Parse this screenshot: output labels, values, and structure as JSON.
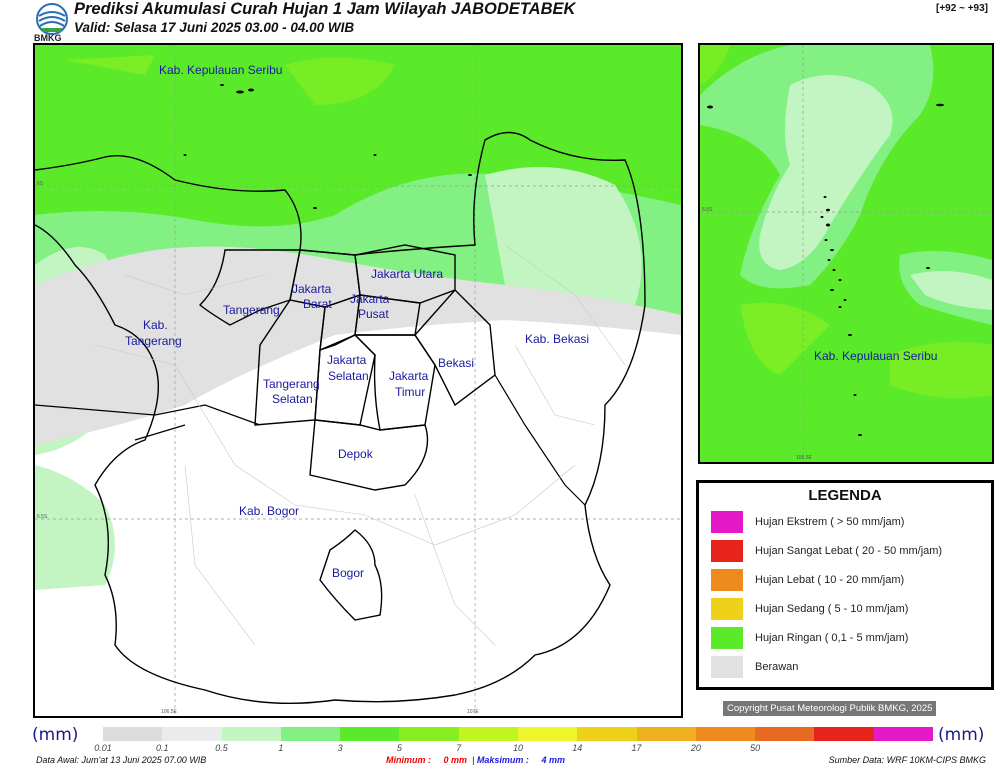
{
  "header": {
    "title": "Prediksi Akumulasi Curah Hujan 1 Jam Wilayah JABODETABEK",
    "valid": "Valid: Selasa 17 Juni 2025 03.00 - 04.00 WIB",
    "run_id": "[+92 ~ +93]",
    "logo_text": "BMKG"
  },
  "main_map": {
    "regions": [
      "Kab. Kepulauan Seribu",
      "Jakarta Utara",
      "Jakarta",
      "Barat",
      "Jakarta",
      "Pusat",
      "Tangerang",
      "Kab.",
      "Tangerang",
      "Jakarta",
      "Selatan",
      "Jakarta",
      "Timur",
      "Bekasi",
      "Kab. Bekasi",
      "Tangerang",
      "Selatan",
      "Depok",
      "Kab. Bogor",
      "Bogor"
    ],
    "lat_ticks": [
      "6S",
      "6.5S"
    ],
    "lon_ticks": [
      "106.5E",
      "107E"
    ]
  },
  "inset_map": {
    "region": "Kab. Kepulauan Seribu",
    "lat_tick": "5.5S",
    "lon_tick": "106.5E"
  },
  "legend": {
    "title": "LEGENDA",
    "items": [
      {
        "label": "Hujan Ekstrem ( > 50 mm/jam)",
        "color": "#e619c8"
      },
      {
        "label": "Hujan Sangat Lebat ( 20 - 50 mm/jam)",
        "color": "#e8231c"
      },
      {
        "label": "Hujan Lebat ( 10 - 20 mm/jam)",
        "color": "#ee8a1e"
      },
      {
        "label": "Hujan Sedang ( 5 - 10 mm/jam)",
        "color": "#eed21a"
      },
      {
        "label": "Hujan Ringan ( 0,1 - 5 mm/jam)",
        "color": "#5aea2a"
      },
      {
        "label": "Berawan",
        "color": "#e1e1e1"
      }
    ]
  },
  "copyright": "Copyright Pusat Meteorologi Publik BMKG, 2025",
  "colorbar": {
    "unit": "(mm)",
    "colors": [
      "#dcdcdc",
      "#ebebeb",
      "#c3f5c3",
      "#82f082",
      "#5aea2a",
      "#88ee22",
      "#c2f520",
      "#eef52a",
      "#eed21a",
      "#eeb01e",
      "#ee8a1e",
      "#e86a22",
      "#e8231c",
      "#e619c8"
    ],
    "ticks": [
      "0.01",
      "0.1",
      "0.5",
      "1",
      "3",
      "5",
      "7",
      "10",
      "14",
      "17",
      "20",
      "50"
    ]
  },
  "footer": {
    "data_awal": "Data Awal: Jum'at 13 Juni 2025 07.00 WIB",
    "min_label": "Minimum :",
    "min_value": "0 mm",
    "sep": "|",
    "max_label": "Maksimum :",
    "max_value": "4 mm",
    "source": "Sumber Data: WRF 10KM-CIPS BMKG"
  }
}
